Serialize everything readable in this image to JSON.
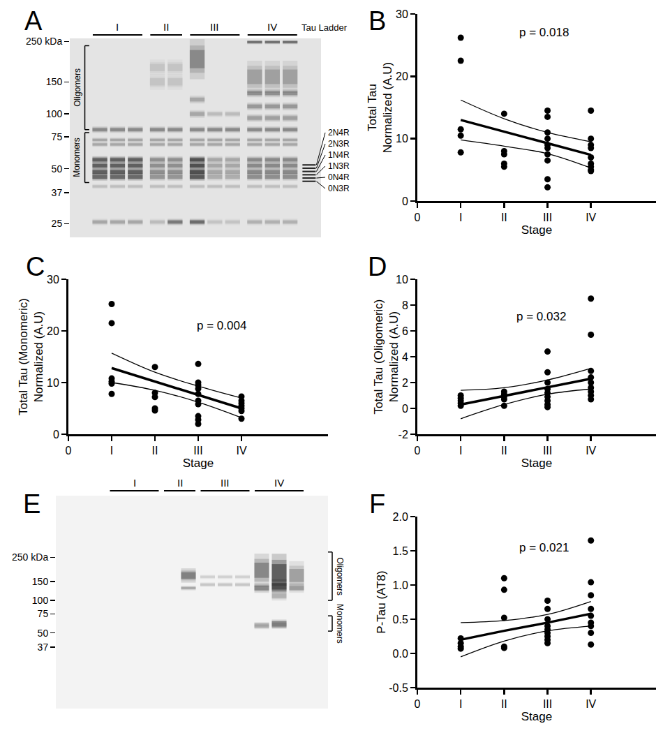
{
  "blots": [
    {
      "panel": "A",
      "lane_groups": [
        {
          "label": "I",
          "lanes": 3
        },
        {
          "label": "II",
          "lanes": 2
        },
        {
          "label": "III",
          "lanes": 3
        },
        {
          "label": "IV",
          "lanes": 3
        }
      ],
      "ylim": [
        21,
        260
      ],
      "yticks": [
        {
          "value": 250,
          "label": "250 kDa"
        },
        150,
        100,
        75,
        50,
        37,
        25
      ],
      "brackets": [
        {
          "text": "Oligomers",
          "range": [
            82,
            237
          ]
        },
        {
          "text": "Monomers",
          "range": [
            42,
            79
          ]
        }
      ],
      "ladder": {
        "label": "Tau Ladder",
        "isoforms": [
          "2N4R",
          "2N3R",
          "1N4R",
          "1N3R",
          "0N4R",
          "0N3R"
        ]
      }
    },
    {
      "panel": "E",
      "lane_groups": [
        {
          "label": "I",
          "lanes": 3
        },
        {
          "label": "II",
          "lanes": 2
        },
        {
          "label": "III",
          "lanes": 3
        },
        {
          "label": "IV",
          "lanes": 3
        }
      ],
      "ylim": [
        10,
        930
      ],
      "yticks": [
        {
          "value": 250,
          "label": "250 kDa"
        },
        150,
        100,
        75,
        50,
        37
      ],
      "brackets": [
        {
          "text": "Oligomers",
          "range": [
            100,
            280
          ]
        },
        {
          "text": "Monomers",
          "range": [
            52,
            72
          ]
        }
      ]
    }
  ],
  "chart_data": [
    {
      "panel": "B",
      "type": "scatter",
      "color": "#000000",
      "marker": "circle",
      "x": [
        1,
        1,
        1,
        1,
        1,
        2,
        2,
        2,
        2,
        2,
        3,
        3,
        3,
        3,
        3,
        3,
        3,
        3,
        3,
        3,
        4,
        4,
        4,
        4,
        4,
        4,
        4,
        4,
        4
      ],
      "values": [
        26.2,
        22.5,
        11.5,
        10.5,
        7.8,
        14.0,
        8.0,
        7.5,
        6.0,
        5.5,
        14.5,
        13.5,
        11.0,
        10.0,
        9.0,
        8.5,
        7.5,
        6.5,
        3.5,
        2.2,
        14.5,
        10.0,
        9.0,
        8.5,
        7.0,
        6.0,
        5.5,
        5.0,
        4.8
      ],
      "fit": {
        "x": [
          1,
          2,
          3,
          4
        ],
        "values": [
          13.0,
          11.1,
          9.2,
          7.4
        ],
        "upper": [
          16.2,
          13.2,
          11.0,
          9.5
        ],
        "lower": [
          9.8,
          8.8,
          7.6,
          5.3
        ]
      },
      "annotation": "p = 0.018",
      "x_label": "Stage",
      "y_label": [
        "Total Tau",
        "Normalized (A.U)"
      ],
      "xlim": [
        0,
        5.5
      ],
      "xticks": [
        0,
        {
          "value": 1,
          "label": "I"
        },
        {
          "value": 2,
          "label": "II"
        },
        {
          "value": 3,
          "label": "III"
        },
        {
          "value": 4,
          "label": "IV"
        }
      ],
      "ylim": [
        0,
        30
      ],
      "yticks": [
        0,
        10,
        20,
        30
      ]
    },
    {
      "panel": "C",
      "type": "scatter",
      "color": "#000000",
      "marker": "circle",
      "x": [
        1,
        1,
        1,
        1,
        1,
        1,
        2,
        2,
        2,
        2,
        2,
        3,
        3,
        3,
        3,
        3,
        3,
        3,
        3,
        3,
        3,
        4,
        4,
        4,
        4,
        4,
        4,
        4
      ],
      "values": [
        25.2,
        21.5,
        10.8,
        10.2,
        9.8,
        7.8,
        13.0,
        8.0,
        7.2,
        5.0,
        4.6,
        13.6,
        10.0,
        9.5,
        8.8,
        7.8,
        6.5,
        5.8,
        3.5,
        2.8,
        2.0,
        7.3,
        6.5,
        6.0,
        5.5,
        5.0,
        4.5,
        3.0
      ],
      "fit": {
        "x": [
          1,
          2,
          3,
          4
        ],
        "values": [
          12.8,
          10.2,
          7.6,
          5.0
        ],
        "upper": [
          15.7,
          12.0,
          9.3,
          7.0
        ],
        "lower": [
          10.0,
          8.5,
          6.2,
          3.2
        ]
      },
      "annotation": "p = 0.004",
      "x_label": "Stage",
      "y_label": [
        "Total Tau (Monomeric)",
        "Normalized (A.U)"
      ],
      "xlim": [
        0,
        6
      ],
      "xticks": [
        0,
        {
          "value": 1,
          "label": "I"
        },
        {
          "value": 2,
          "label": "II"
        },
        {
          "value": 3,
          "label": "III"
        },
        {
          "value": 4,
          "label": "IV"
        }
      ],
      "ylim": [
        0,
        30
      ],
      "yticks": [
        0,
        10,
        20,
        30
      ]
    },
    {
      "panel": "D",
      "type": "scatter",
      "color": "#000000",
      "marker": "circle",
      "x": [
        1,
        1,
        1,
        1,
        1,
        2,
        2,
        2,
        2,
        2,
        3,
        3,
        3,
        3,
        3,
        3,
        3,
        3,
        3,
        4,
        4,
        4,
        4,
        4,
        4,
        4,
        4,
        4
      ],
      "values": [
        1.0,
        0.8,
        0.6,
        0.4,
        0.2,
        1.3,
        1.1,
        0.9,
        0.7,
        0.2,
        4.4,
        2.8,
        2.0,
        1.5,
        1.2,
        0.9,
        0.6,
        0.3,
        0.1,
        8.5,
        5.7,
        2.9,
        2.4,
        2.0,
        1.6,
        1.3,
        1.0,
        0.7
      ],
      "fit": {
        "x": [
          1,
          2,
          3,
          4
        ],
        "values": [
          0.3,
          0.97,
          1.63,
          2.3
        ],
        "upper": [
          1.4,
          1.6,
          2.2,
          3.1
        ],
        "lower": [
          -0.8,
          0.3,
          1.1,
          1.5
        ]
      },
      "annotation": "p = 0.032",
      "x_label": "Stage",
      "y_label": [
        "Total Tau (Oligomeric)",
        "Normalized (A.U)"
      ],
      "xlim": [
        0,
        5.5
      ],
      "xticks": [
        0,
        {
          "value": 1,
          "label": "I"
        },
        {
          "value": 2,
          "label": "II"
        },
        {
          "value": 3,
          "label": "III"
        },
        {
          "value": 4,
          "label": "IV"
        }
      ],
      "ylim": [
        -2,
        10
      ],
      "yticks": [
        -2,
        0,
        2,
        4,
        6,
        8,
        10
      ]
    },
    {
      "panel": "F",
      "type": "scatter",
      "color": "#000000",
      "marker": "circle",
      "x": [
        1,
        1,
        1,
        1,
        2,
        2,
        2,
        2,
        2,
        3,
        3,
        3,
        3,
        3,
        3,
        3,
        3,
        3,
        4,
        4,
        4,
        4,
        4,
        4,
        4,
        4,
        4
      ],
      "values": [
        0.22,
        0.15,
        0.1,
        0.07,
        1.1,
        0.93,
        0.52,
        0.1,
        0.08,
        0.77,
        0.65,
        0.5,
        0.4,
        0.35,
        0.3,
        0.25,
        0.2,
        0.15,
        1.65,
        1.04,
        0.85,
        0.65,
        0.55,
        0.45,
        0.4,
        0.3,
        0.13
      ],
      "fit": {
        "x": [
          1,
          2,
          3,
          4
        ],
        "values": [
          0.2,
          0.33,
          0.45,
          0.58
        ],
        "upper": [
          0.45,
          0.48,
          0.57,
          0.76
        ],
        "lower": [
          -0.05,
          0.18,
          0.33,
          0.4
        ]
      },
      "annotation": "p = 0.021",
      "x_label": "Stage",
      "y_label": [
        "P-Tau (AT8)"
      ],
      "xlim": [
        0,
        5.5
      ],
      "xticks": [
        0,
        {
          "value": 1,
          "label": "I"
        },
        {
          "value": 2,
          "label": "II"
        },
        {
          "value": 3,
          "label": "III"
        },
        {
          "value": 4,
          "label": "IV"
        }
      ],
      "ylim": [
        -0.5,
        2.0
      ],
      "yticks": [
        -0.5,
        {
          "value": 0,
          "label": "0.0"
        },
        0.5,
        {
          "value": 1,
          "label": "1.0"
        },
        1.5,
        {
          "value": 2,
          "label": "2.0"
        }
      ]
    }
  ]
}
